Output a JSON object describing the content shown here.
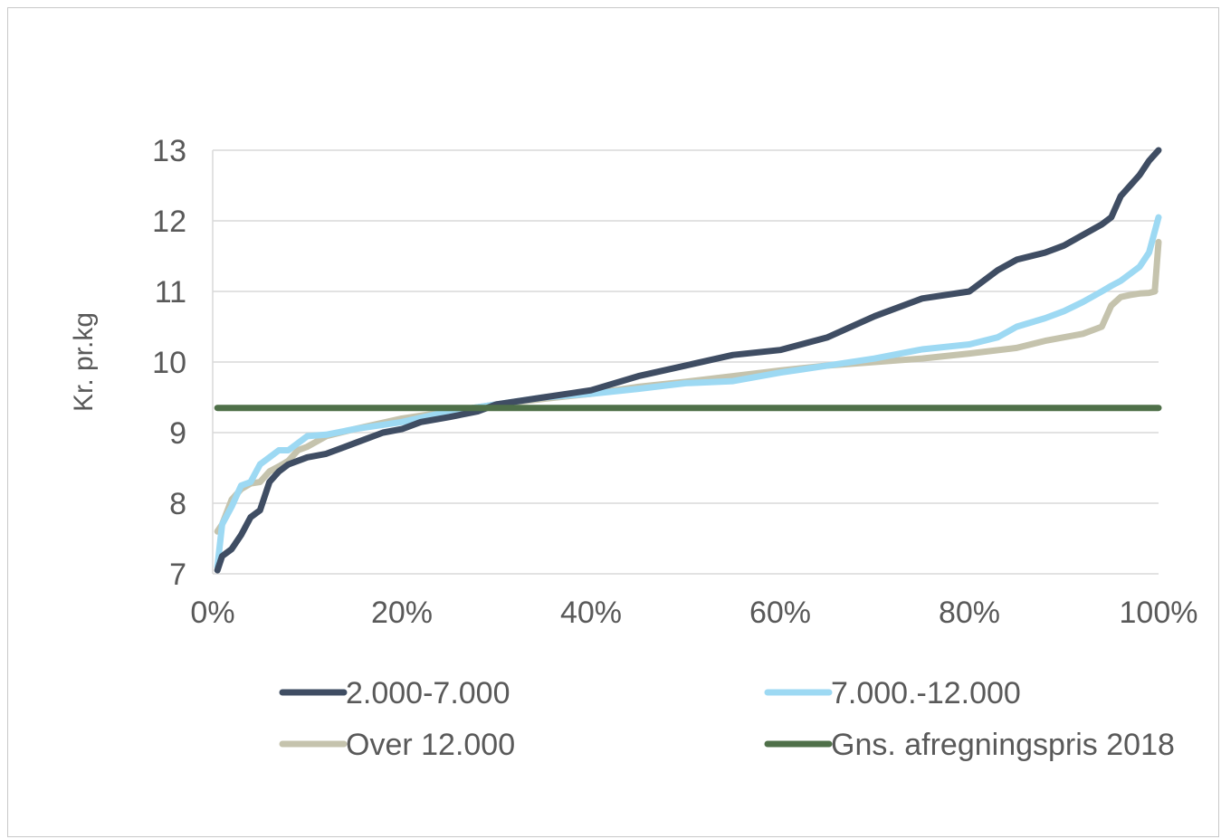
{
  "chart_data": {
    "type": "line",
    "title": "",
    "xlabel": "",
    "ylabel": "Kr. pr.kg",
    "xlim": [
      0,
      100
    ],
    "ylim": [
      7,
      13
    ],
    "x_ticks": [
      "0%",
      "20%",
      "40%",
      "60%",
      "80%",
      "100%"
    ],
    "y_ticks": [
      "7",
      "8",
      "9",
      "10",
      "11",
      "12",
      "13"
    ],
    "grid": "horizontal",
    "legend_position": "bottom",
    "series": [
      {
        "name": "2.000-7.000",
        "color": "#3f4d63",
        "x": [
          0.5,
          1,
          2,
          3,
          4,
          5,
          6,
          7,
          8,
          9,
          10,
          12,
          15,
          18,
          20,
          22,
          25,
          28,
          30,
          35,
          40,
          45,
          50,
          55,
          60,
          65,
          70,
          75,
          80,
          83,
          85,
          88,
          90,
          92,
          94,
          95,
          96,
          97,
          98,
          99,
          100
        ],
        "y": [
          7.05,
          7.25,
          7.35,
          7.55,
          7.8,
          7.9,
          8.3,
          8.45,
          8.55,
          8.6,
          8.65,
          8.7,
          8.85,
          9.0,
          9.05,
          9.15,
          9.22,
          9.3,
          9.4,
          9.5,
          9.6,
          9.8,
          9.95,
          10.1,
          10.17,
          10.35,
          10.65,
          10.9,
          11.0,
          11.3,
          11.45,
          11.55,
          11.65,
          11.8,
          11.95,
          12.05,
          12.35,
          12.5,
          12.65,
          12.85,
          13.0
        ]
      },
      {
        "name": "7.000.-12.000",
        "color": "#9dd9f3",
        "x": [
          0.5,
          1,
          2,
          3,
          4,
          5,
          6,
          7,
          8,
          9,
          10,
          12,
          15,
          20,
          25,
          30,
          35,
          40,
          45,
          50,
          55,
          60,
          65,
          70,
          75,
          80,
          83,
          85,
          88,
          90,
          92,
          94,
          95,
          96,
          97,
          98,
          99,
          100
        ],
        "y": [
          7.1,
          7.7,
          7.95,
          8.25,
          8.3,
          8.55,
          8.65,
          8.75,
          8.75,
          8.85,
          8.95,
          8.97,
          9.05,
          9.15,
          9.3,
          9.4,
          9.5,
          9.55,
          9.62,
          9.7,
          9.73,
          9.85,
          9.95,
          10.05,
          10.18,
          10.25,
          10.35,
          10.5,
          10.62,
          10.72,
          10.85,
          11.0,
          11.08,
          11.15,
          11.25,
          11.35,
          11.55,
          12.05
        ]
      },
      {
        "name": "Over 12.000",
        "color": "#c5c3ad",
        "x": [
          0.5,
          1,
          2,
          3,
          4,
          5,
          6,
          7,
          8,
          9,
          10,
          12,
          15,
          20,
          25,
          30,
          35,
          40,
          45,
          50,
          55,
          60,
          65,
          70,
          75,
          80,
          85,
          88,
          90,
          92,
          94,
          95,
          96,
          97,
          98,
          99,
          99.6,
          100
        ],
        "y": [
          7.6,
          7.7,
          8.05,
          8.2,
          8.28,
          8.3,
          8.45,
          8.52,
          8.6,
          8.75,
          8.8,
          8.95,
          9.05,
          9.2,
          9.3,
          9.4,
          9.48,
          9.55,
          9.65,
          9.72,
          9.8,
          9.88,
          9.95,
          10.0,
          10.05,
          10.12,
          10.2,
          10.3,
          10.35,
          10.4,
          10.5,
          10.8,
          10.92,
          10.95,
          10.97,
          10.98,
          11.0,
          11.7
        ]
      },
      {
        "name": "Gns. afregningspris 2018",
        "color": "#4f7049",
        "x": [
          0.5,
          100
        ],
        "y": [
          9.35,
          9.35
        ]
      }
    ]
  }
}
